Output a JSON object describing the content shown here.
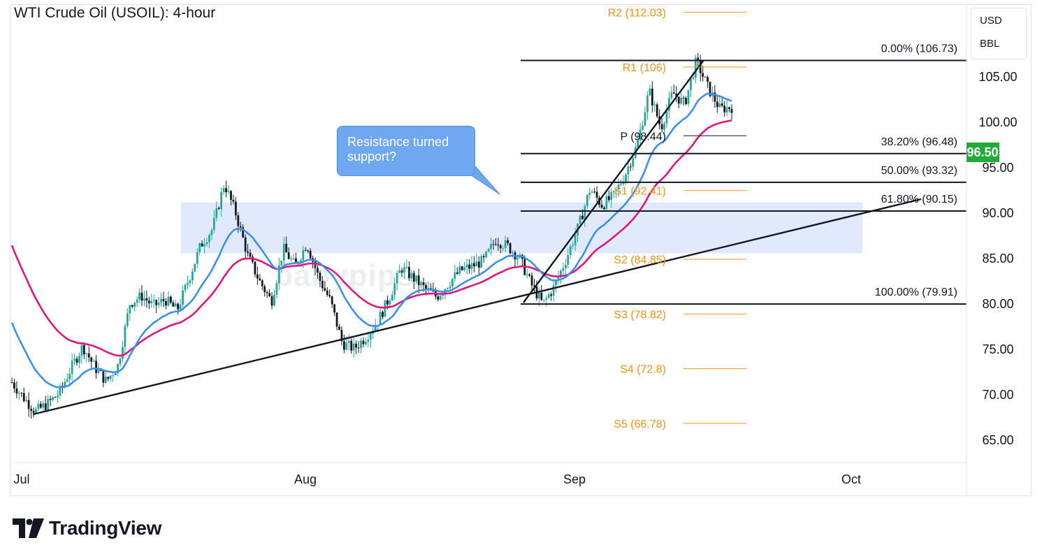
{
  "title": "WTI Crude Oil (USOIL): 4-hour",
  "units": [
    "USD",
    "BBL"
  ],
  "brand": "TradingView",
  "watermark": "babypips",
  "annotation": "Resistance turned support?",
  "colors": {
    "up": "#26a69a",
    "down": "#131722",
    "ema_fast": "#3d91e8",
    "ema_slow": "#e0177b",
    "pivots": "#f7931a",
    "zone": "#dce6fb",
    "price_label": "#22ab3a"
  },
  "chart_data": {
    "type": "candlestick",
    "ylim": [
      62,
      109
    ],
    "y_ticks": [
      "65.00",
      "70.00",
      "75.00",
      "80.00",
      "85.00",
      "90.00",
      "95.00",
      "100.00",
      "105.00"
    ],
    "x_ticks": [
      "Jul",
      "Aug",
      "Sep",
      "Oct"
    ],
    "current_price": "96.50",
    "pivot_levels": [
      {
        "label": "R2 (112.03)",
        "value": 112.03
      },
      {
        "label": "R1 (106)",
        "value": 106
      },
      {
        "label": "P (98.44)",
        "value": 98.44
      },
      {
        "label": "S1 (92.41)",
        "value": 92.41
      },
      {
        "label": "S2 (84.85)",
        "value": 84.85
      },
      {
        "label": "S3 (78.82)",
        "value": 78.82
      },
      {
        "label": "S4 (72.8)",
        "value": 72.8
      },
      {
        "label": "S5 (66.78)",
        "value": 66.78
      }
    ],
    "fib_levels": [
      {
        "label": "0.00% (106.73)",
        "value": 106.73
      },
      {
        "label": "38.20% (96.48)",
        "value": 96.48
      },
      {
        "label": "50.00% (93.32)",
        "value": 93.32
      },
      {
        "label": "61.80% (90.15)",
        "value": 90.15
      },
      {
        "label": "100.00% (79.91)",
        "value": 79.91
      }
    ],
    "support_zone": [
      85.5,
      91.1
    ],
    "price_path": [
      71.3,
      69.6,
      68.1,
      68.9,
      70.1,
      72.8,
      75.3,
      73.0,
      71.4,
      73.2,
      80.0,
      80.8,
      79.7,
      80.4,
      79.2,
      82.7,
      86.4,
      88.2,
      93.2,
      89.8,
      85.2,
      82.4,
      80.2,
      86.0,
      84.1,
      86.6,
      82.8,
      80.2,
      75.6,
      75.0,
      76.3,
      78.0,
      80.7,
      83.9,
      82.8,
      81.6,
      80.7,
      82.2,
      83.6,
      84.1,
      84.7,
      87.0,
      86.3,
      85.0,
      82.1,
      79.9,
      81.9,
      85.0,
      88.4,
      92.6,
      90.8,
      91.8,
      94.3,
      97.5,
      103.4,
      99.3,
      103.2,
      101.9,
      106.7,
      103.7,
      101.4,
      101.6
    ]
  }
}
